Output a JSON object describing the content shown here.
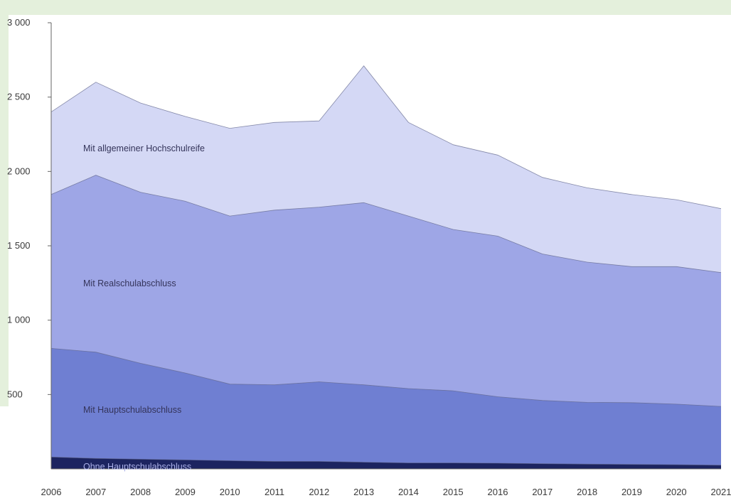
{
  "chart_data": {
    "type": "area",
    "stacked": true,
    "title": "",
    "xlabel": "",
    "ylabel": "",
    "x": [
      2006,
      2007,
      2008,
      2009,
      2010,
      2011,
      2012,
      2013,
      2014,
      2015,
      2016,
      2017,
      2018,
      2019,
      2020,
      2021
    ],
    "x_tick_labels": [
      "2006",
      "2007",
      "2008",
      "2009",
      "2010",
      "2011",
      "2012",
      "2013",
      "2014",
      "2015",
      "2016",
      "2017",
      "2018",
      "2019",
      "2020",
      "2021"
    ],
    "ylim": [
      0,
      3000
    ],
    "y_ticks": [
      500,
      1000,
      1500,
      2000,
      2500,
      3000
    ],
    "y_tick_labels": [
      "500",
      "1 000",
      "1 500",
      "2 000",
      "2 500",
      "3 000"
    ],
    "grid": false,
    "legend": "none",
    "series": [
      {
        "name": "Ohne Hauptschulabschluss",
        "color": "#1c2460",
        "values": [
          80,
          70,
          65,
          60,
          55,
          50,
          50,
          45,
          40,
          40,
          38,
          35,
          32,
          30,
          28,
          25
        ]
      },
      {
        "name": "Mit Hauptschulabschluss",
        "color": "#6f7fd2",
        "values": [
          730,
          715,
          645,
          585,
          515,
          515,
          535,
          520,
          500,
          485,
          447,
          425,
          415,
          415,
          407,
          395
        ]
      },
      {
        "name": "Mit Realschulabschluss",
        "color": "#9ea6e6",
        "values": [
          1035,
          1190,
          1150,
          1155,
          1130,
          1175,
          1175,
          1225,
          1160,
          1085,
          1080,
          985,
          943,
          915,
          925,
          900
        ]
      },
      {
        "name": "Mit allgemeiner Hochschulreife",
        "color": "#d4d8f5",
        "values": [
          555,
          625,
          600,
          570,
          590,
          590,
          580,
          920,
          630,
          570,
          545,
          515,
          500,
          485,
          450,
          430
        ]
      }
    ]
  },
  "frame_color": "#e4f0dc"
}
